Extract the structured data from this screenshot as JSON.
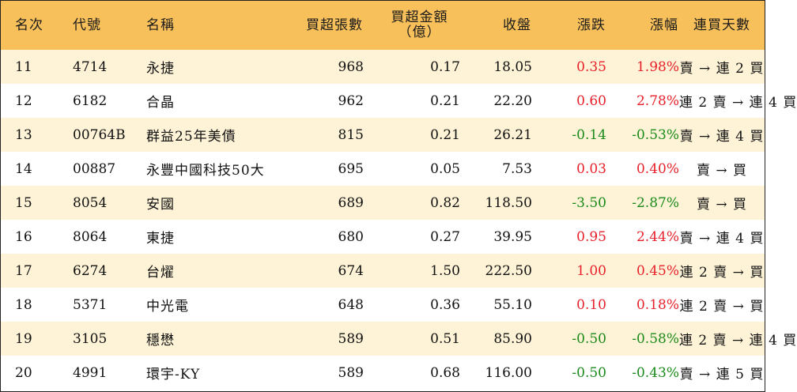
{
  "header": {
    "rank": "名次",
    "code": "代號",
    "name": "名稱",
    "volume": "買超張數",
    "amount_line1": "買超金額",
    "amount_line2": "（億）",
    "close": "收盤",
    "change": "漲跌",
    "change_pct": "漲幅",
    "days": "連買天數"
  },
  "colors": {
    "up": "#e8202a",
    "down": "#1a8a1a",
    "header_bg": "#f8c05a",
    "stripe_bg": "#fef3d6"
  },
  "rows": [
    {
      "rank": "11",
      "code": "4714",
      "name": "永捷",
      "volume": "968",
      "amount": "0.17",
      "close": "18.05",
      "change": "0.35",
      "change_pct": "1.98%",
      "direction": "up",
      "days": "賣 → 連 2 買"
    },
    {
      "rank": "12",
      "code": "6182",
      "name": "合晶",
      "volume": "962",
      "amount": "0.21",
      "close": "22.20",
      "change": "0.60",
      "change_pct": "2.78%",
      "direction": "up",
      "days": "連 2 賣 → 連 4 買"
    },
    {
      "rank": "13",
      "code": "00764B",
      "name": "群益25年美債",
      "volume": "815",
      "amount": "0.21",
      "close": "26.21",
      "change": "-0.14",
      "change_pct": "-0.53%",
      "direction": "down",
      "days": "賣 → 連 4 買"
    },
    {
      "rank": "14",
      "code": "00887",
      "name": "永豐中國科技50大",
      "volume": "695",
      "amount": "0.05",
      "close": "7.53",
      "change": "0.03",
      "change_pct": "0.40%",
      "direction": "up",
      "days": "賣 → 買"
    },
    {
      "rank": "15",
      "code": "8054",
      "name": "安國",
      "volume": "689",
      "amount": "0.82",
      "close": "118.50",
      "change": "-3.50",
      "change_pct": "-2.87%",
      "direction": "down",
      "days": "賣 → 買"
    },
    {
      "rank": "16",
      "code": "8064",
      "name": "東捷",
      "volume": "680",
      "amount": "0.27",
      "close": "39.95",
      "change": "0.95",
      "change_pct": "2.44%",
      "direction": "up",
      "days": "賣 → 連 4 買"
    },
    {
      "rank": "17",
      "code": "6274",
      "name": "台燿",
      "volume": "674",
      "amount": "1.50",
      "close": "222.50",
      "change": "1.00",
      "change_pct": "0.45%",
      "direction": "up",
      "days": "連 2 賣 → 買"
    },
    {
      "rank": "18",
      "code": "5371",
      "name": "中光電",
      "volume": "648",
      "amount": "0.36",
      "close": "55.10",
      "change": "0.10",
      "change_pct": "0.18%",
      "direction": "up",
      "days": "連 2 賣 → 買"
    },
    {
      "rank": "19",
      "code": "3105",
      "name": "穩懋",
      "volume": "589",
      "amount": "0.51",
      "close": "85.90",
      "change": "-0.50",
      "change_pct": "-0.58%",
      "direction": "down",
      "days": "連 2 賣 → 連 4 買"
    },
    {
      "rank": "20",
      "code": "4991",
      "name": "環宇-KY",
      "volume": "589",
      "amount": "0.68",
      "close": "116.00",
      "change": "-0.50",
      "change_pct": "-0.43%",
      "direction": "down",
      "days": "賣 → 連 5 買"
    }
  ]
}
